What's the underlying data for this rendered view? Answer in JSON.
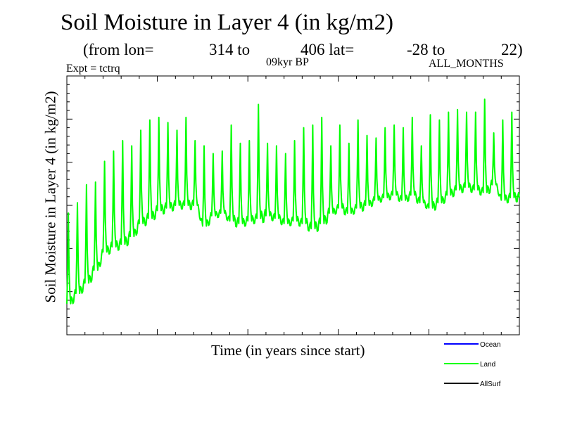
{
  "header": {
    "title": "Soil Moisture in Layer 4 (in kg/m2)",
    "subtitle": {
      "from_lon_label": "(from lon=",
      "lon_start": "314 to",
      "lon_end": "406 lat=",
      "lat_start": "-28 to",
      "lat_end": "22)"
    },
    "expt": "Expt = tctrq",
    "period": "09kyr BP",
    "months": "ALL_MONTHS"
  },
  "chart_data": {
    "type": "line",
    "title": "Soil Moisture in Layer 4 (in kg/m2)",
    "xlabel": "Time (in years since start)",
    "ylabel": "Soil Moisture in Layer 4 (in kg/m2)",
    "xlim": [
      0,
      50
    ],
    "ylim": [
      0,
      1
    ],
    "grid": false,
    "legend_position": "bottom-right",
    "x_unit_note": "years since start (no tick labels shown); y values are relative (axis unlabeled)",
    "series": [
      {
        "name": "Ocean",
        "color": "#0000ff",
        "values": []
      },
      {
        "name": "Land",
        "color": "#00ff00",
        "annual_peaks": [
          0.47,
          0.51,
          0.58,
          0.59,
          0.67,
          0.71,
          0.75,
          0.73,
          0.79,
          0.83,
          0.84,
          0.82,
          0.79,
          0.84,
          0.75,
          0.73,
          0.7,
          0.71,
          0.81,
          0.74,
          0.75,
          0.89,
          0.74,
          0.73,
          0.7,
          0.75,
          0.8,
          0.81,
          0.84,
          0.73,
          0.81,
          0.74,
          0.83,
          0.77,
          0.76,
          0.8,
          0.81,
          0.8,
          0.84,
          0.73,
          0.85,
          0.83,
          0.86,
          0.87,
          0.86,
          0.86,
          0.91,
          0.78,
          0.83,
          0.86
        ],
        "annual_troughs": [
          0.12,
          0.16,
          0.2,
          0.25,
          0.32,
          0.34,
          0.35,
          0.38,
          0.43,
          0.45,
          0.48,
          0.49,
          0.5,
          0.5,
          0.5,
          0.42,
          0.46,
          0.47,
          0.44,
          0.43,
          0.44,
          0.45,
          0.46,
          0.45,
          0.43,
          0.44,
          0.43,
          0.41,
          0.43,
          0.47,
          0.49,
          0.47,
          0.49,
          0.5,
          0.52,
          0.53,
          0.54,
          0.52,
          0.54,
          0.51,
          0.49,
          0.51,
          0.54,
          0.56,
          0.57,
          0.56,
          0.55,
          0.58,
          0.52,
          0.53
        ]
      },
      {
        "name": "AllSurf",
        "color": "#000000",
        "values": []
      }
    ]
  }
}
